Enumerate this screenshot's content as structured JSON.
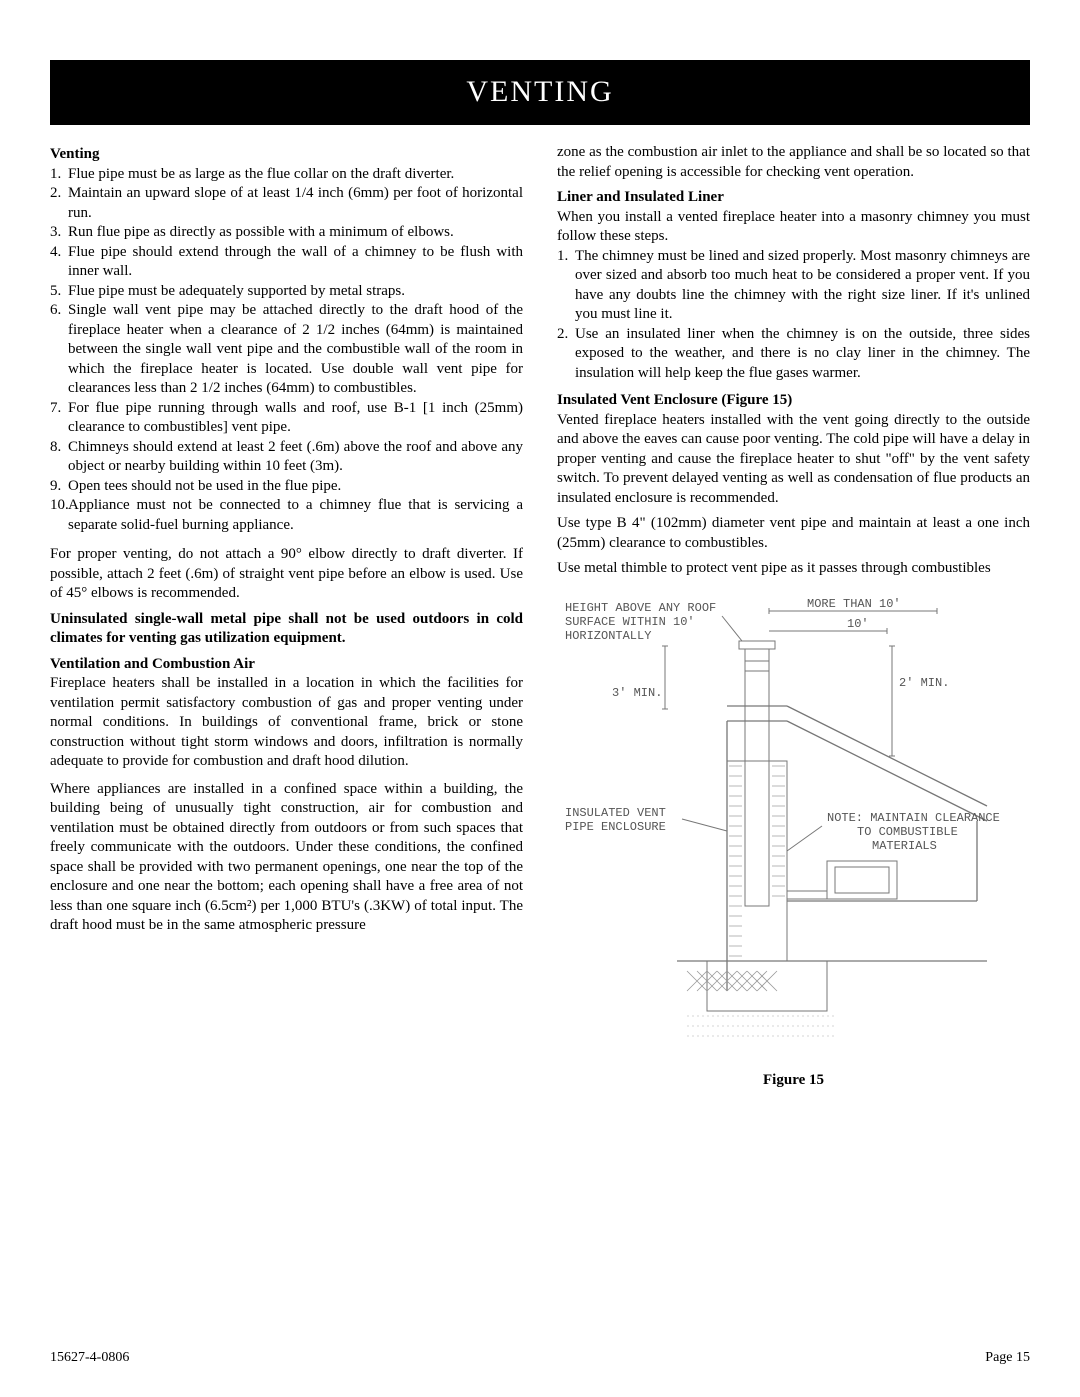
{
  "titleBand": "VENTING",
  "left": {
    "heading1": "Venting",
    "list1": [
      "Flue pipe must be as large as the flue collar on the draft diverter.",
      "Maintain an upward slope of at least 1/4 inch (6mm) per foot of horizontal run.",
      "Run flue pipe as directly as possible with a minimum of elbows.",
      "Flue pipe should extend through the wall of a chimney to be flush with inner wall.",
      "Flue pipe must be adequately supported by metal straps.",
      "Single wall vent pipe may be attached directly to the draft hood of the fireplace heater when a clearance of 2 1/2 inches (64mm) is maintained between the single wall vent pipe and the combustible wall of the room in which the fireplace heater is located. Use double wall vent pipe for clearances less than 2 1/2 inches (64mm) to combustibles.",
      "For flue pipe running through walls and roof, use B-1 [1 inch (25mm) clearance to combustibles] vent pipe.",
      "Chimneys should extend at least 2 feet (.6m) above the roof and above any object or nearby building within 10 feet (3m).",
      "Open tees should not be used in the flue pipe.",
      "Appliance must not be connected to a chimney flue that is servicing a separate solid-fuel burning appliance."
    ],
    "para1": "For proper venting, do not attach a 90° elbow directly to draft diverter. If possible, attach 2 feet (.6m) of straight vent pipe before an elbow is used. Use of 45° elbows is recommended.",
    "boldPara": "Uninsulated single-wall metal pipe shall not be used outdoors in cold climates for venting gas utilization equipment.",
    "heading2": "Ventilation and Combustion Air",
    "para2": "Fireplace heaters shall be installed in a location in which the facilities for ventilation permit satisfactory combustion of gas and proper venting under normal conditions. In buildings of conventional frame, brick or stone construction without tight storm windows and doors, infiltration is normally adequate to provide for combustion and draft hood dilution.",
    "para3": "Where appliances are installed in a confined space within a building, the building being of unusually tight construction, air for combustion and ventilation must be obtained directly from outdoors or from such spaces that freely communicate with the outdoors. Under these conditions, the confined space shall be provided with two permanent openings, one near the top of the enclosure and one near the bottom; each opening shall have a free area of not less than one square inch (6.5cm²) per 1,000 BTU's (.3KW) of total input. The draft hood must be in the same atmospheric pressure"
  },
  "right": {
    "paraCont": "zone as the combustion air inlet to the appliance and shall be so located so that the relief opening is accessible for checking vent operation.",
    "heading1": "Liner and Insulated Liner",
    "para1": "When you install a vented fireplace heater into a masonry chimney you must follow these steps.",
    "list1": [
      "The chimney must be lined and sized properly. Most masonry chimneys are over sized and absorb too much heat to be considered a proper vent. If you have any doubts line the chimney with the right size liner. If it's unlined you must line it.",
      "Use an insulated liner when the chimney is on the outside, three sides exposed to the weather, and there is no clay liner in the chimney. The insulation will help keep the flue gases warmer."
    ],
    "heading2": "Insulated Vent Enclosure (Figure 15)",
    "para2": "Vented fireplace heaters installed with the vent going directly to the outside and above the eaves can cause poor venting. The cold pipe will have a delay in proper venting and cause the fireplace heater to shut \"off\" by the vent safety switch. To prevent delayed venting as well as condensation of flue products an insulated enclosure is recommended.",
    "para3": "Use type B 4\" (102mm) diameter vent pipe and maintain at least a one inch (25mm) clearance to combustibles.",
    "para4": "Use metal thimble to protect vent pipe as it passes through combustibles",
    "diagramLabels": {
      "heightAbove1": "HEIGHT ABOVE ANY ROOF",
      "heightAbove2": "SURFACE WITHIN 10'",
      "heightAbove3": "HORIZONTALLY",
      "moreThan10": "MORE THAN 10'",
      "ten": "10'",
      "twoMin": "2' MIN.",
      "threeMin": "3' MIN.",
      "insVent1": "INSULATED VENT",
      "insVent2": "PIPE ENCLOSURE",
      "note1": "NOTE: MAINTAIN CLEARANCE",
      "note2": "TO COMBUSTIBLE",
      "note3": "MATERIALS"
    },
    "figureCaption": "Figure 15"
  },
  "footer": {
    "left": "15627-4-0806",
    "right": "Page 15"
  },
  "diagramStyle": {
    "lineColor": "#777",
    "hatchColor": "#999",
    "textColor": "#555"
  }
}
